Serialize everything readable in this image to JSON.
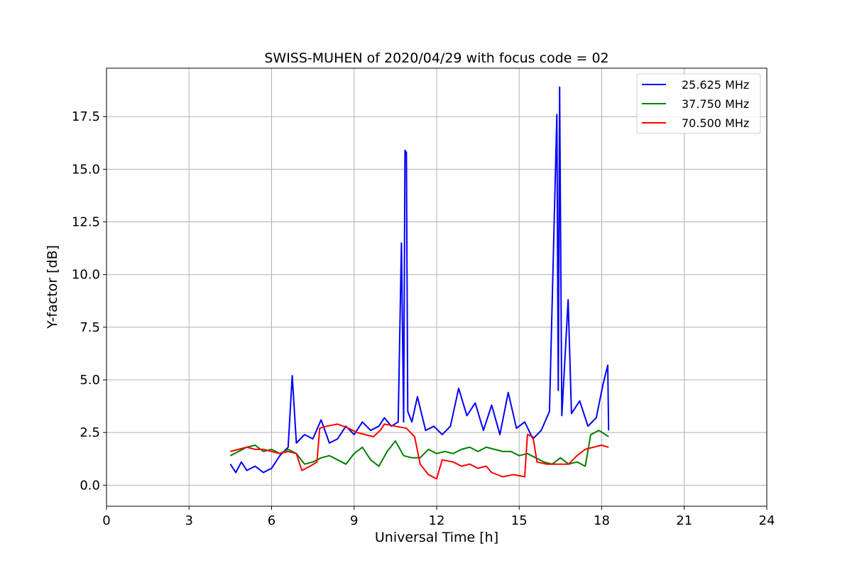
{
  "chart_data": {
    "type": "line",
    "title": "SWISS-MUHEN of 2020/04/29 with focus code = 02",
    "xlabel": "Universal Time [h]",
    "ylabel": "Y-factor [dB]",
    "xlim": [
      0,
      24
    ],
    "ylim": [
      -1.0,
      19.8
    ],
    "xticks": [
      "0",
      "3",
      "6",
      "9",
      "12",
      "15",
      "18",
      "21",
      "24"
    ],
    "yticks": [
      "0.0",
      "2.5",
      "5.0",
      "7.5",
      "10.0",
      "12.5",
      "15.0",
      "17.5"
    ],
    "grid": true,
    "legend_position": "top-right",
    "series": [
      {
        "name": "25.625 MHz",
        "color": "#0000ff",
        "points": [
          [
            4.5,
            1.0
          ],
          [
            4.7,
            0.6
          ],
          [
            4.9,
            1.1
          ],
          [
            5.1,
            0.7
          ],
          [
            5.4,
            0.9
          ],
          [
            5.7,
            0.6
          ],
          [
            6.0,
            0.8
          ],
          [
            6.3,
            1.4
          ],
          [
            6.6,
            1.8
          ],
          [
            6.75,
            5.2
          ],
          [
            6.9,
            2.0
          ],
          [
            7.2,
            2.4
          ],
          [
            7.5,
            2.2
          ],
          [
            7.8,
            3.1
          ],
          [
            8.1,
            2.0
          ],
          [
            8.4,
            2.2
          ],
          [
            8.7,
            2.8
          ],
          [
            9.0,
            2.4
          ],
          [
            9.3,
            3.0
          ],
          [
            9.6,
            2.6
          ],
          [
            9.9,
            2.8
          ],
          [
            10.1,
            3.2
          ],
          [
            10.35,
            2.8
          ],
          [
            10.6,
            3.0
          ],
          [
            10.72,
            11.5
          ],
          [
            10.8,
            3.0
          ],
          [
            10.85,
            15.9
          ],
          [
            10.9,
            15.8
          ],
          [
            10.95,
            3.5
          ],
          [
            11.1,
            3.0
          ],
          [
            11.3,
            4.2
          ],
          [
            11.6,
            2.6
          ],
          [
            11.9,
            2.8
          ],
          [
            12.2,
            2.4
          ],
          [
            12.5,
            2.8
          ],
          [
            12.8,
            4.6
          ],
          [
            13.1,
            3.3
          ],
          [
            13.4,
            3.9
          ],
          [
            13.7,
            2.6
          ],
          [
            14.0,
            3.8
          ],
          [
            14.3,
            2.4
          ],
          [
            14.6,
            4.4
          ],
          [
            14.9,
            2.7
          ],
          [
            15.2,
            3.0
          ],
          [
            15.5,
            2.2
          ],
          [
            15.8,
            2.6
          ],
          [
            16.1,
            3.5
          ],
          [
            16.37,
            17.6
          ],
          [
            16.42,
            4.5
          ],
          [
            16.47,
            18.9
          ],
          [
            16.55,
            3.3
          ],
          [
            16.78,
            8.8
          ],
          [
            16.9,
            3.4
          ],
          [
            17.2,
            4.0
          ],
          [
            17.5,
            2.8
          ],
          [
            17.8,
            3.2
          ],
          [
            18.05,
            4.8
          ],
          [
            18.22,
            5.7
          ],
          [
            18.25,
            2.6
          ]
        ]
      },
      {
        "name": "37.750 MHz",
        "color": "#008000",
        "points": [
          [
            4.5,
            1.4
          ],
          [
            4.8,
            1.6
          ],
          [
            5.1,
            1.8
          ],
          [
            5.4,
            1.9
          ],
          [
            5.7,
            1.6
          ],
          [
            6.0,
            1.7
          ],
          [
            6.3,
            1.5
          ],
          [
            6.6,
            1.7
          ],
          [
            6.9,
            1.5
          ],
          [
            7.2,
            1.0
          ],
          [
            7.5,
            1.1
          ],
          [
            7.8,
            1.3
          ],
          [
            8.1,
            1.4
          ],
          [
            8.4,
            1.2
          ],
          [
            8.7,
            1.0
          ],
          [
            9.0,
            1.5
          ],
          [
            9.3,
            1.8
          ],
          [
            9.6,
            1.2
          ],
          [
            9.9,
            0.9
          ],
          [
            10.2,
            1.6
          ],
          [
            10.5,
            2.1
          ],
          [
            10.8,
            1.4
          ],
          [
            11.1,
            1.3
          ],
          [
            11.4,
            1.3
          ],
          [
            11.7,
            1.7
          ],
          [
            12.0,
            1.5
          ],
          [
            12.3,
            1.6
          ],
          [
            12.6,
            1.5
          ],
          [
            12.9,
            1.7
          ],
          [
            13.2,
            1.8
          ],
          [
            13.5,
            1.6
          ],
          [
            13.8,
            1.8
          ],
          [
            14.1,
            1.7
          ],
          [
            14.4,
            1.6
          ],
          [
            14.7,
            1.6
          ],
          [
            15.0,
            1.4
          ],
          [
            15.3,
            1.5
          ],
          [
            15.6,
            1.3
          ],
          [
            15.9,
            1.1
          ],
          [
            16.2,
            1.0
          ],
          [
            16.5,
            1.3
          ],
          [
            16.8,
            1.0
          ],
          [
            17.1,
            1.1
          ],
          [
            17.4,
            0.9
          ],
          [
            17.6,
            2.4
          ],
          [
            17.9,
            2.6
          ],
          [
            18.25,
            2.3
          ]
        ]
      },
      {
        "name": "70.500 MHz",
        "color": "#ff0000",
        "points": [
          [
            4.5,
            1.6
          ],
          [
            4.8,
            1.7
          ],
          [
            5.1,
            1.8
          ],
          [
            5.4,
            1.7
          ],
          [
            5.7,
            1.7
          ],
          [
            6.0,
            1.6
          ],
          [
            6.3,
            1.5
          ],
          [
            6.6,
            1.6
          ],
          [
            6.9,
            1.5
          ],
          [
            7.1,
            0.7
          ],
          [
            7.4,
            0.9
          ],
          [
            7.65,
            1.1
          ],
          [
            7.75,
            2.7
          ],
          [
            8.0,
            2.8
          ],
          [
            8.4,
            2.9
          ],
          [
            8.8,
            2.7
          ],
          [
            9.1,
            2.5
          ],
          [
            9.4,
            2.4
          ],
          [
            9.7,
            2.3
          ],
          [
            9.95,
            2.6
          ],
          [
            10.1,
            2.9
          ],
          [
            10.5,
            2.8
          ],
          [
            10.9,
            2.7
          ],
          [
            11.2,
            2.3
          ],
          [
            11.4,
            1.0
          ],
          [
            11.7,
            0.5
          ],
          [
            12.0,
            0.3
          ],
          [
            12.2,
            1.2
          ],
          [
            12.6,
            1.1
          ],
          [
            12.9,
            0.9
          ],
          [
            13.2,
            1.0
          ],
          [
            13.5,
            0.8
          ],
          [
            13.8,
            0.9
          ],
          [
            14.0,
            0.6
          ],
          [
            14.4,
            0.4
          ],
          [
            14.8,
            0.5
          ],
          [
            15.2,
            0.4
          ],
          [
            15.3,
            2.4
          ],
          [
            15.5,
            2.3
          ],
          [
            15.65,
            1.1
          ],
          [
            16.0,
            1.0
          ],
          [
            16.4,
            1.0
          ],
          [
            16.8,
            1.0
          ],
          [
            17.1,
            1.4
          ],
          [
            17.4,
            1.7
          ],
          [
            17.7,
            1.8
          ],
          [
            18.0,
            1.9
          ],
          [
            18.25,
            1.8
          ]
        ]
      }
    ]
  }
}
